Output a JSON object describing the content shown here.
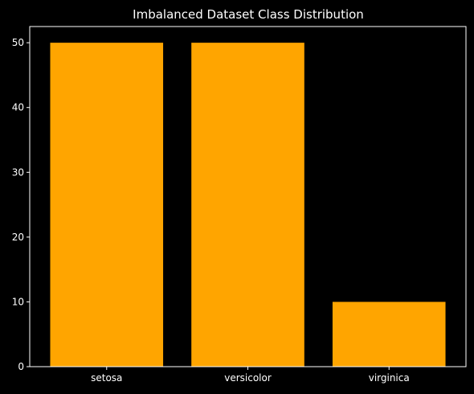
{
  "chart_data": {
    "type": "bar",
    "title": "Imbalanced Dataset Class Distribution",
    "xlabel": "",
    "ylabel": "",
    "categories": [
      "setosa",
      "versicolor",
      "virginica"
    ],
    "values": [
      50,
      50,
      10
    ],
    "ylim": [
      0,
      52.5
    ],
    "yticks": [
      0,
      10,
      20,
      30,
      40,
      50
    ],
    "bar_color": "#ffa500",
    "background_color": "#000000",
    "axis_color": "#ffffff",
    "text_color": "#ffffff",
    "grid": false,
    "legend": "none"
  }
}
